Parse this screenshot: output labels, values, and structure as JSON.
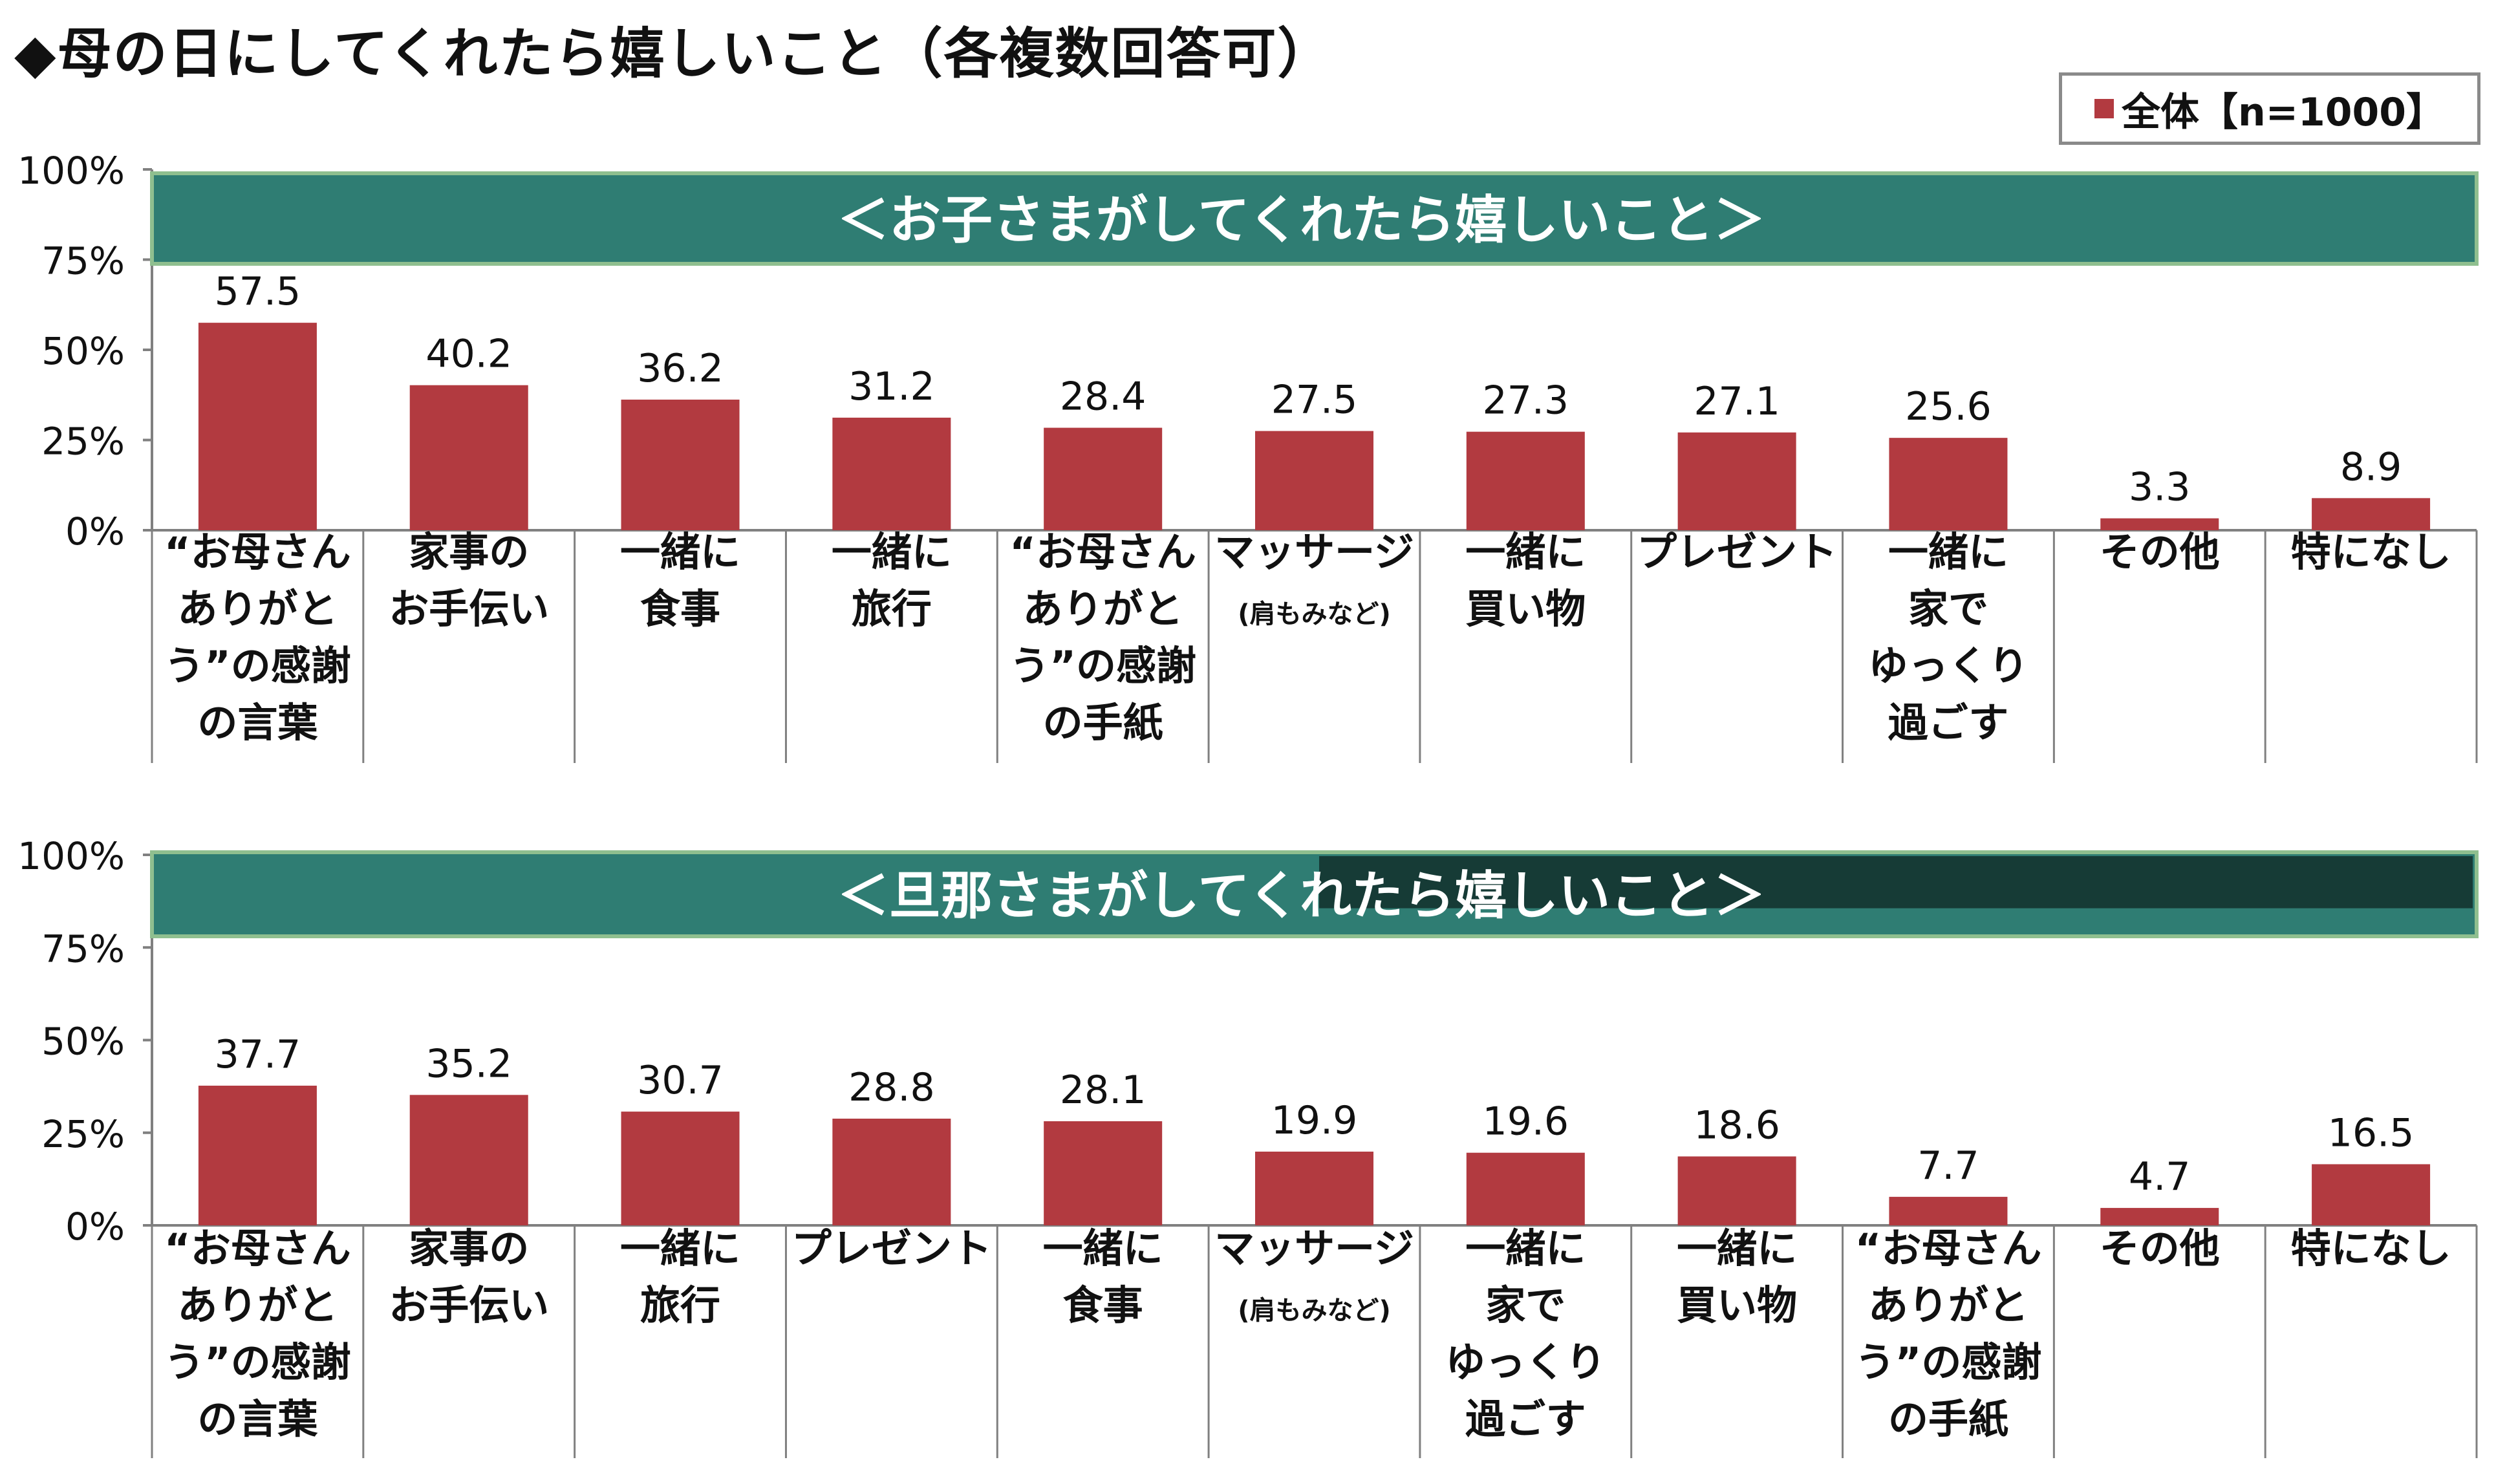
{
  "title": "◆母の日にしてくれたら嬉しいこと（各複数回答可）",
  "legend": {
    "label": "全体【n=1000】",
    "color": "#b23a40"
  },
  "colors": {
    "bar": "#b23a40",
    "banner": "#2f7d73",
    "banner_dark": "#163b36",
    "grid": "#808080"
  },
  "chart_data": [
    {
      "type": "bar",
      "title": "＜お子さまがしてくれたら嬉しいこと＞",
      "ylim": [
        0,
        100
      ],
      "yticks": [
        "100%",
        "75%",
        "50%",
        "25%",
        "0%"
      ],
      "categories": [
        [
          "“お母さん",
          "ありがと",
          "う”の感謝",
          "の言葉"
        ],
        [
          "家事の",
          "お手伝い"
        ],
        [
          "一緒に",
          "食事"
        ],
        [
          "一緒に",
          "旅行"
        ],
        [
          "“お母さん",
          "ありがと",
          "う”の感謝",
          "の手紙"
        ],
        [
          "マッサージ",
          "(肩もみなど)"
        ],
        [
          "一緒に",
          "買い物"
        ],
        [
          "プレゼント"
        ],
        [
          "一緒に",
          "家で",
          "ゆっくり",
          "過ごす"
        ],
        [
          "その他"
        ],
        [
          "特になし"
        ]
      ],
      "values": [
        57.5,
        40.2,
        36.2,
        31.2,
        28.4,
        27.5,
        27.3,
        27.1,
        25.6,
        3.3,
        8.9
      ]
    },
    {
      "type": "bar",
      "title": "＜旦那さまがしてくれたら嬉しいこと＞",
      "ylim": [
        0,
        100
      ],
      "yticks": [
        "100%",
        "75%",
        "50%",
        "25%",
        "0%"
      ],
      "categories": [
        [
          "“お母さん",
          "ありがと",
          "う”の感謝",
          "の言葉"
        ],
        [
          "家事の",
          "お手伝い"
        ],
        [
          "一緒に",
          "旅行"
        ],
        [
          "プレゼント"
        ],
        [
          "一緒に",
          "食事"
        ],
        [
          "マッサージ",
          "(肩もみなど)"
        ],
        [
          "一緒に",
          "家で",
          "ゆっくり",
          "過ごす"
        ],
        [
          "一緒に",
          "買い物"
        ],
        [
          "“お母さん",
          "ありがと",
          "う”の感謝",
          "の手紙"
        ],
        [
          "その他"
        ],
        [
          "特になし"
        ]
      ],
      "values": [
        37.7,
        35.2,
        30.7,
        28.8,
        28.1,
        19.9,
        19.6,
        18.6,
        7.7,
        4.7,
        16.5
      ]
    }
  ]
}
